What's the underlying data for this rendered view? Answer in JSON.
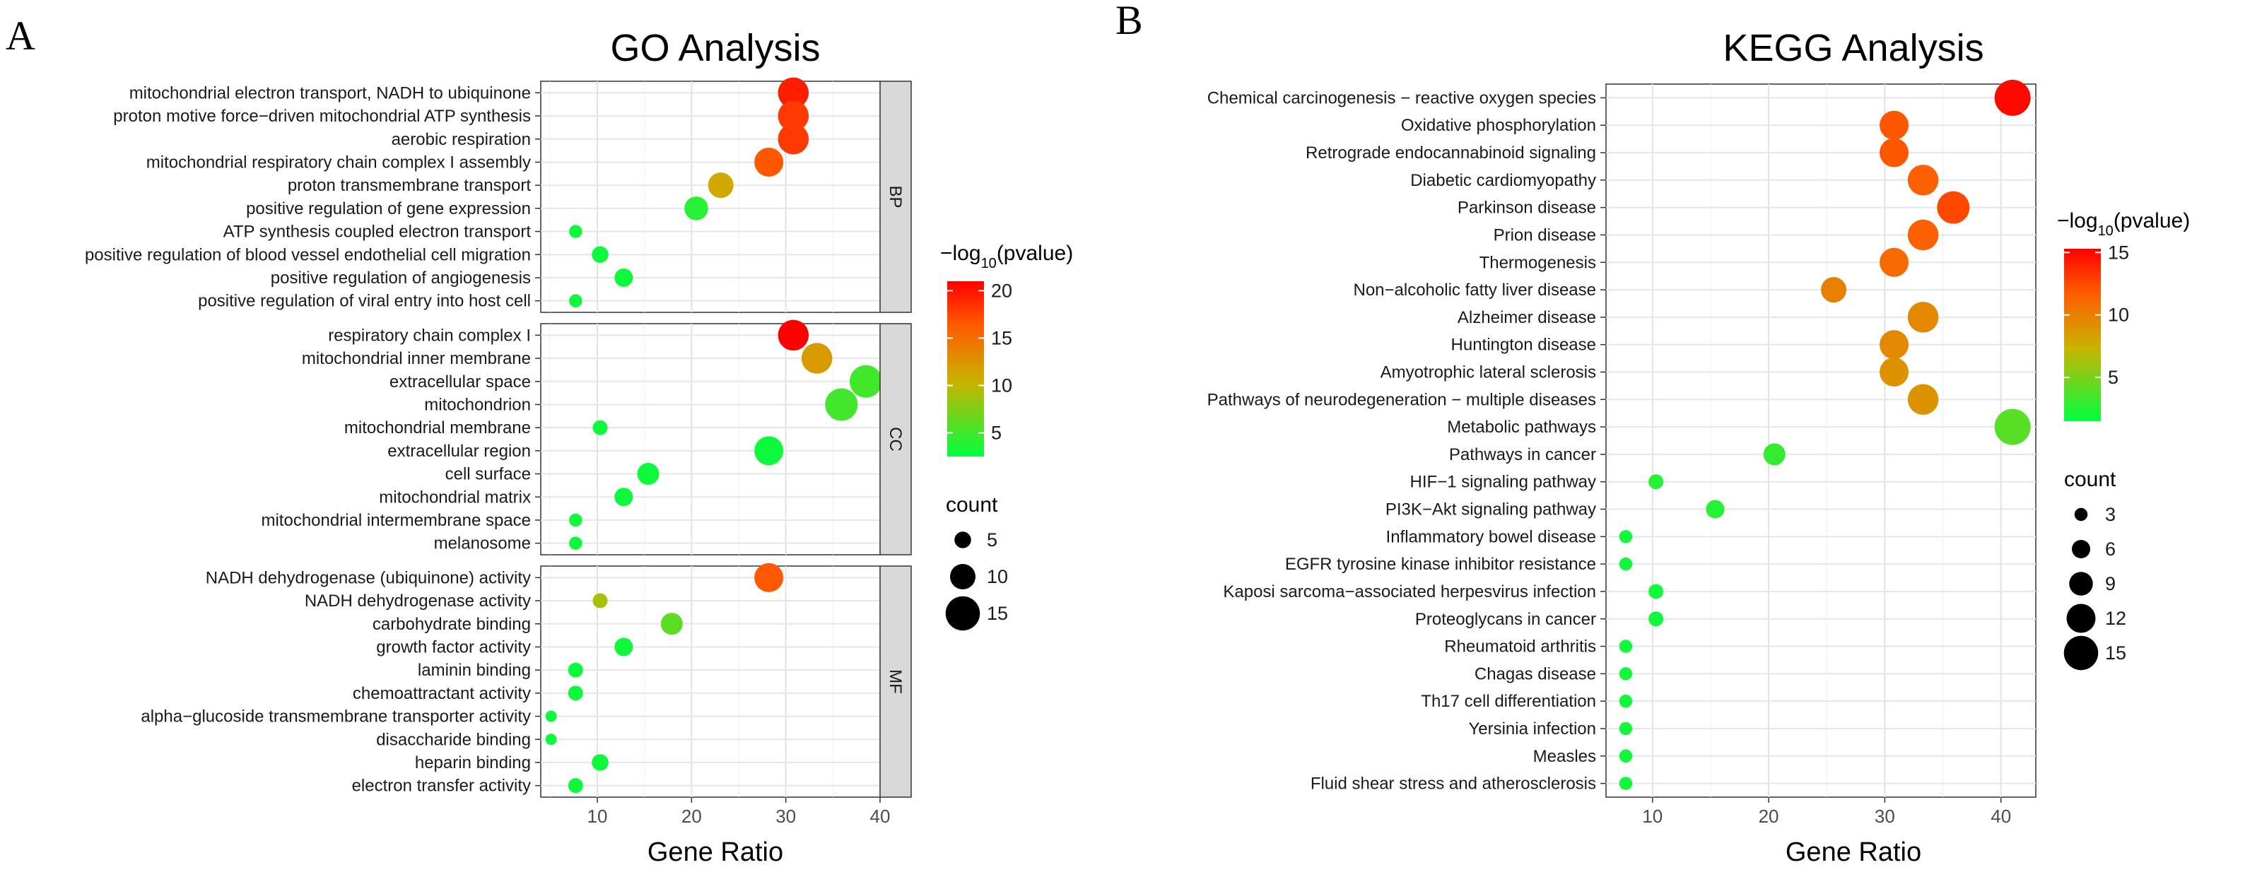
{
  "panel_letters": {
    "a": "A",
    "b": "B"
  },
  "chart_data": [
    {
      "type": "scatter",
      "subtype": "bubble",
      "title": "GO Analysis",
      "xlabel": "Gene Ratio",
      "ylabel": "",
      "xlim": [
        4,
        40
      ],
      "xticks": [
        10,
        20,
        30,
        40
      ],
      "grid": true,
      "color_scale": {
        "title_prefix": "−log",
        "title_sub": "10",
        "title_suffix": "(pvalue)",
        "min": 2.5,
        "max": 21,
        "ticks": [
          5,
          10,
          15,
          20
        ],
        "colors": [
          "#00ff40",
          "#c8b400",
          "#ff5a00",
          "#ff0000"
        ]
      },
      "size_legend": {
        "title": "count",
        "values": [
          5,
          10,
          15
        ],
        "labels": [
          "5",
          "10",
          "15"
        ]
      },
      "facets": [
        {
          "label": "BP",
          "points": [
            {
              "term": "mitochondrial electron transport, NADH to ubiquinone",
              "x": 30.8,
              "count": 13,
              "pvalue_log": 19.5
            },
            {
              "term": "proton motive force−driven mitochondrial ATP synthesis",
              "x": 30.8,
              "count": 13,
              "pvalue_log": 18
            },
            {
              "term": "aerobic respiration",
              "x": 30.8,
              "count": 13,
              "pvalue_log": 18
            },
            {
              "term": "mitochondrial respiratory chain complex I assembly",
              "x": 28.2,
              "count": 12,
              "pvalue_log": 16.5
            },
            {
              "term": "proton transmembrane transport",
              "x": 23.1,
              "count": 10,
              "pvalue_log": 11
            },
            {
              "term": "positive regulation of gene expression",
              "x": 20.5,
              "count": 9,
              "pvalue_log": 4
            },
            {
              "term": "ATP synthesis coupled electron transport",
              "x": 7.7,
              "count": 3,
              "pvalue_log": 3
            },
            {
              "term": "positive regulation of blood vessel endothelial cell migration",
              "x": 10.3,
              "count": 5,
              "pvalue_log": 3
            },
            {
              "term": "positive regulation of angiogenesis",
              "x": 12.8,
              "count": 6,
              "pvalue_log": 3
            },
            {
              "term": "positive regulation of viral entry into host cell",
              "x": 7.7,
              "count": 3,
              "pvalue_log": 3
            }
          ]
        },
        {
          "label": "CC",
          "points": [
            {
              "term": "respiratory chain complex I",
              "x": 30.8,
              "count": 13,
              "pvalue_log": 21
            },
            {
              "term": "mitochondrial inner membrane",
              "x": 33.3,
              "count": 13,
              "pvalue_log": 12
            },
            {
              "term": "extracellular space",
              "x": 38.5,
              "count": 14,
              "pvalue_log": 5
            },
            {
              "term": "mitochondrion",
              "x": 35.9,
              "count": 14,
              "pvalue_log": 5
            },
            {
              "term": "mitochondrial membrane",
              "x": 10.3,
              "count": 4,
              "pvalue_log": 3
            },
            {
              "term": "extracellular region",
              "x": 28.2,
              "count": 12,
              "pvalue_log": 3
            },
            {
              "term": "cell surface",
              "x": 15.4,
              "count": 8,
              "pvalue_log": 3
            },
            {
              "term": "mitochondrial matrix",
              "x": 12.8,
              "count": 6,
              "pvalue_log": 3
            },
            {
              "term": "mitochondrial intermembrane space",
              "x": 7.7,
              "count": 3,
              "pvalue_log": 3
            },
            {
              "term": "melanosome",
              "x": 7.7,
              "count": 3,
              "pvalue_log": 3
            }
          ]
        },
        {
          "label": "MF",
          "points": [
            {
              "term": "NADH dehydrogenase (ubiquinone) activity",
              "x": 28.2,
              "count": 12,
              "pvalue_log": 16.5
            },
            {
              "term": "NADH dehydrogenase activity",
              "x": 10.3,
              "count": 4,
              "pvalue_log": 9
            },
            {
              "term": "carbohydrate binding",
              "x": 17.9,
              "count": 8,
              "pvalue_log": 6
            },
            {
              "term": "growth factor activity",
              "x": 12.8,
              "count": 6,
              "pvalue_log": 3
            },
            {
              "term": "laminin binding",
              "x": 7.7,
              "count": 4,
              "pvalue_log": 3
            },
            {
              "term": "chemoattractant activity",
              "x": 7.7,
              "count": 4,
              "pvalue_log": 3
            },
            {
              "term": "alpha−glucoside transmembrane transporter activity",
              "x": 5.1,
              "count": 2,
              "pvalue_log": 3
            },
            {
              "term": "disaccharide binding",
              "x": 5.1,
              "count": 2,
              "pvalue_log": 3
            },
            {
              "term": "heparin binding",
              "x": 10.3,
              "count": 5,
              "pvalue_log": 3
            },
            {
              "term": "electron transfer activity",
              "x": 7.7,
              "count": 4,
              "pvalue_log": 3
            }
          ]
        }
      ]
    },
    {
      "type": "scatter",
      "subtype": "bubble",
      "title": "KEGG Analysis",
      "xlabel": "Gene Ratio",
      "ylabel": "",
      "xlim": [
        6,
        43
      ],
      "xticks": [
        10,
        20,
        30,
        40
      ],
      "grid": true,
      "color_scale": {
        "title_prefix": "−log",
        "title_sub": "10",
        "title_suffix": "(pvalue)",
        "min": 1.5,
        "max": 15.3,
        "ticks": [
          5,
          10,
          15
        ],
        "colors": [
          "#00ff40",
          "#c8b400",
          "#ff5a00",
          "#ff0000"
        ]
      },
      "size_legend": {
        "title": "count",
        "values": [
          3,
          6,
          9,
          12,
          15
        ],
        "labels": [
          "3",
          "6",
          "9",
          "12",
          "15"
        ]
      },
      "points": [
        {
          "term": "Chemical carcinogenesis − reactive oxygen species",
          "x": 41,
          "count": 16,
          "pvalue_log": 15
        },
        {
          "term": "Oxidative phosphorylation",
          "x": 30.8,
          "count": 12,
          "pvalue_log": 12
        },
        {
          "term": "Retrograde endocannabinoid signaling",
          "x": 30.8,
          "count": 12,
          "pvalue_log": 12
        },
        {
          "term": "Diabetic cardiomyopathy",
          "x": 33.3,
          "count": 13,
          "pvalue_log": 11.5
        },
        {
          "term": "Parkinson disease",
          "x": 35.9,
          "count": 14,
          "pvalue_log": 12.5
        },
        {
          "term": "Prion disease",
          "x": 33.3,
          "count": 13,
          "pvalue_log": 11.5
        },
        {
          "term": "Thermogenesis",
          "x": 30.8,
          "count": 12,
          "pvalue_log": 11
        },
        {
          "term": "Non−alcoholic fatty liver disease",
          "x": 25.6,
          "count": 10,
          "pvalue_log": 10
        },
        {
          "term": "Alzheimer disease",
          "x": 33.3,
          "count": 13,
          "pvalue_log": 9.5
        },
        {
          "term": "Huntington disease",
          "x": 30.8,
          "count": 12,
          "pvalue_log": 9.5
        },
        {
          "term": "Amyotrophic lateral sclerosis",
          "x": 30.8,
          "count": 12,
          "pvalue_log": 9
        },
        {
          "term": "Pathways of neurodegeneration − multiple diseases",
          "x": 33.3,
          "count": 13,
          "pvalue_log": 9
        },
        {
          "term": "Metabolic pathways",
          "x": 41,
          "count": 16,
          "pvalue_log": 4
        },
        {
          "term": "Pathways in cancer",
          "x": 20.5,
          "count": 8,
          "pvalue_log": 3
        },
        {
          "term": "HIF−1 signaling pathway",
          "x": 10.3,
          "count": 4,
          "pvalue_log": 2.5
        },
        {
          "term": "PI3K−Akt signaling pathway",
          "x": 15.4,
          "count": 6,
          "pvalue_log": 2.5
        },
        {
          "term": "Inflammatory bowel disease",
          "x": 7.7,
          "count": 3,
          "pvalue_log": 2
        },
        {
          "term": "EGFR tyrosine kinase inhibitor resistance",
          "x": 7.7,
          "count": 3,
          "pvalue_log": 2
        },
        {
          "term": "Kaposi sarcoma−associated herpesvirus infection",
          "x": 10.3,
          "count": 4,
          "pvalue_log": 2
        },
        {
          "term": "Proteoglycans in cancer",
          "x": 10.3,
          "count": 4,
          "pvalue_log": 2
        },
        {
          "term": "Rheumatoid arthritis",
          "x": 7.7,
          "count": 3,
          "pvalue_log": 2
        },
        {
          "term": "Chagas disease",
          "x": 7.7,
          "count": 3,
          "pvalue_log": 2
        },
        {
          "term": "Th17 cell differentiation",
          "x": 7.7,
          "count": 3,
          "pvalue_log": 2
        },
        {
          "term": "Yersinia infection",
          "x": 7.7,
          "count": 3,
          "pvalue_log": 2
        },
        {
          "term": "Measles",
          "x": 7.7,
          "count": 3,
          "pvalue_log": 2
        },
        {
          "term": "Fluid shear stress and atherosclerosis",
          "x": 7.7,
          "count": 3,
          "pvalue_log": 2
        }
      ]
    }
  ]
}
